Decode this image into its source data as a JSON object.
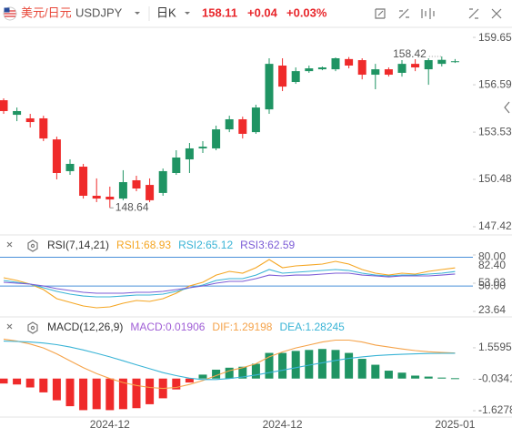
{
  "header": {
    "pair": "美元/日元",
    "symbol": "USDJPY",
    "period": "日K",
    "price": "158.11",
    "change": "+0.04",
    "change_pct": "+0.03%"
  },
  "chart_data": [
    {
      "type": "candlestick",
      "open": [
        155.59,
        154.65,
        154.42,
        154.42,
        153.06,
        151.01,
        151.3,
        149.42,
        149.36,
        149.24,
        150.42,
        150.12,
        149.6,
        150.89,
        151.77,
        152.48,
        152.48,
        153.71,
        154.36,
        153.53,
        155.0,
        157.83,
        156.77,
        157.47,
        157.59,
        157.59,
        158.25,
        158.18,
        157.24,
        157.59,
        157.36,
        157.94,
        157.59,
        157.94,
        158.05
      ],
      "high": [
        155.71,
        155.12,
        154.71,
        154.59,
        153.24,
        151.77,
        151.48,
        150.54,
        150.01,
        151.07,
        150.71,
        150.54,
        151.18,
        152.36,
        152.83,
        152.95,
        153.95,
        154.59,
        154.53,
        155.3,
        158.3,
        158.3,
        157.71,
        157.83,
        157.77,
        158.35,
        158.38,
        158.3,
        157.94,
        157.71,
        158.18,
        158.24,
        158.3,
        158.42,
        158.25
      ],
      "low": [
        154.71,
        154.24,
        153.83,
        152.95,
        150.48,
        150.77,
        149.24,
        149.01,
        148.64,
        149.13,
        149.71,
        149.01,
        149.42,
        150.77,
        150.89,
        152.18,
        152.36,
        153.53,
        153.12,
        153.42,
        154.71,
        156.18,
        156.65,
        157.36,
        157.53,
        157.47,
        157.65,
        156.94,
        156.3,
        157.12,
        157.12,
        157.47,
        156.59,
        157.77,
        158.0
      ],
      "close": [
        154.89,
        154.89,
        154.18,
        153.12,
        150.89,
        151.48,
        149.42,
        149.24,
        149.18,
        150.3,
        149.89,
        149.13,
        151.01,
        151.89,
        152.48,
        152.59,
        153.71,
        154.36,
        153.42,
        155.12,
        157.94,
        156.47,
        157.47,
        157.65,
        157.71,
        158.3,
        157.83,
        157.24,
        157.59,
        157.24,
        157.94,
        157.71,
        158.18,
        158.2,
        158.11
      ],
      "up_color": "#1f9463",
      "down_color": "#ef2a2a",
      "ylim": [
        146.89,
        160.3
      ],
      "yticks": [
        159.65,
        156.59,
        153.53,
        150.48,
        147.42
      ],
      "high_label": 158.42,
      "low_label": 148.64,
      "grid": false
    },
    {
      "type": "line",
      "title": "RSI(7,14,21)",
      "series": [
        {
          "name": "RSI1:68.93",
          "color": "#f5a623",
          "values": [
            58.7,
            55.9,
            52.1,
            46.4,
            36.9,
            33.1,
            29.3,
            27.4,
            28.4,
            32.2,
            35.0,
            34.1,
            36.9,
            42.6,
            50.2,
            54.0,
            61.5,
            65.3,
            63.4,
            69.1,
            77.7,
            69.1,
            71.0,
            71.9,
            72.9,
            75.8,
            72.9,
            67.2,
            63.4,
            61.5,
            63.4,
            62.5,
            65.3,
            67.2,
            68.93
          ]
        },
        {
          "name": "RSI2:65.12",
          "color": "#3ab4d6",
          "values": [
            55.9,
            54.0,
            52.1,
            48.3,
            44.5,
            41.6,
            39.7,
            38.8,
            38.8,
            39.7,
            40.7,
            40.7,
            41.6,
            44.5,
            48.3,
            51.1,
            55.9,
            57.8,
            57.8,
            61.5,
            67.2,
            63.4,
            64.4,
            65.3,
            66.3,
            67.2,
            66.3,
            63.4,
            61.5,
            60.6,
            61.5,
            61.5,
            62.5,
            63.4,
            65.12
          ]
        },
        {
          "name": "RSI3:62.59",
          "color": "#7c5cd6",
          "values": [
            54.0,
            53.0,
            52.1,
            50.2,
            47.3,
            45.4,
            43.5,
            42.6,
            42.6,
            42.6,
            43.5,
            43.5,
            44.5,
            46.4,
            48.3,
            50.2,
            53.0,
            54.9,
            54.9,
            57.8,
            61.5,
            60.6,
            61.5,
            61.5,
            62.5,
            63.4,
            63.4,
            61.5,
            60.6,
            59.6,
            60.6,
            60.6,
            60.6,
            61.5,
            62.59
          ]
        }
      ],
      "ylim": [
        23.64,
        82.4
      ],
      "yticks": [
        {
          "value": 82.4,
          "label": "82.40"
        },
        53.03,
        23.64
      ],
      "hlines": [
        {
          "value": 80,
          "label": "80.00"
        },
        {
          "value": 50,
          "label": "50.00"
        }
      ],
      "hline_color": "#4a90d9",
      "grid": false
    },
    {
      "type": "combo",
      "title": "MACD(12,26,9)",
      "bar_label": "MACD:0.01906",
      "bar_label_color": "#a05fd6",
      "values": [
        -0.25,
        -0.3,
        -0.45,
        -0.7,
        -1.1,
        -1.4,
        -1.6,
        -1.55,
        -1.6,
        -1.55,
        -1.5,
        -1.3,
        -1.0,
        -0.55,
        -0.2,
        0.2,
        0.45,
        0.55,
        0.6,
        0.75,
        1.3,
        1.3,
        1.4,
        1.45,
        1.5,
        1.45,
        1.3,
        1.0,
        0.7,
        0.4,
        0.3,
        0.15,
        0.1,
        0.05,
        0.01906
      ],
      "up_color": "#1f9463",
      "down_color": "#ef2a2a",
      "series": [
        {
          "name": "DIF:1.29198",
          "color": "#f5a34a",
          "values": [
            2.0,
            1.9,
            1.75,
            1.55,
            1.25,
            0.9,
            0.55,
            0.25,
            0.0,
            -0.2,
            -0.35,
            -0.45,
            -0.5,
            -0.45,
            -0.3,
            -0.1,
            0.15,
            0.4,
            0.55,
            0.75,
            1.1,
            1.35,
            1.55,
            1.7,
            1.85,
            1.95,
            1.95,
            1.85,
            1.7,
            1.6,
            1.5,
            1.42,
            1.36,
            1.32,
            1.29198
          ]
        },
        {
          "name": "DEA:1.28245",
          "color": "#3ab4d6",
          "values": [
            1.9,
            1.88,
            1.85,
            1.8,
            1.72,
            1.6,
            1.45,
            1.28,
            1.1,
            0.9,
            0.7,
            0.5,
            0.3,
            0.15,
            0.02,
            -0.05,
            -0.05,
            0.0,
            0.08,
            0.18,
            0.3,
            0.42,
            0.55,
            0.68,
            0.8,
            0.92,
            1.02,
            1.1,
            1.16,
            1.2,
            1.23,
            1.25,
            1.27,
            1.28,
            1.28245
          ]
        }
      ],
      "categories": [
        null,
        null,
        null,
        null,
        null,
        null,
        null,
        null,
        "2024-12",
        null,
        null,
        null,
        null,
        null,
        null,
        null,
        null,
        null,
        null,
        null,
        null,
        "2024-12",
        null,
        null,
        null,
        null,
        null,
        null,
        null,
        null,
        null,
        null,
        null,
        null,
        "2025-01"
      ],
      "ylim": [
        -1.95,
        2.11
      ],
      "yticks": [
        1.55953,
        -0.03415,
        -1.62783
      ],
      "grid": false
    }
  ]
}
